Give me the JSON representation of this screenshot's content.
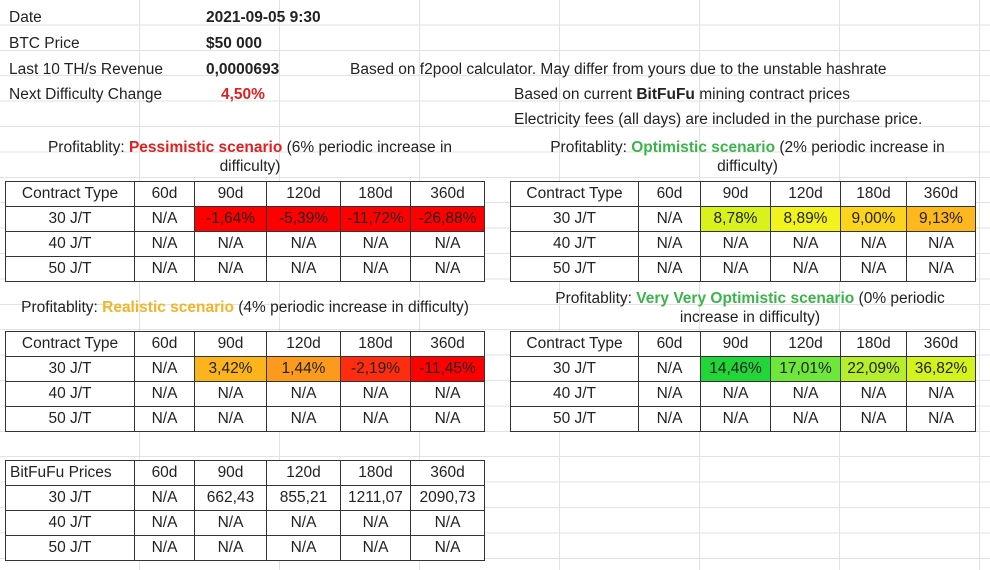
{
  "info": {
    "date_label": "Date",
    "date_value": "2021-09-05 9:30",
    "btc_label": "BTC Price",
    "btc_value": "$50 000",
    "revenue_label": "Last 10 TH/s Revenue",
    "revenue_value": "0,0000693",
    "revenue_note": "Based on f2pool calculator. May differ from yours due to the unstable hashrate",
    "difficulty_label": "Next Difficulty Change",
    "difficulty_value": "4,50%",
    "contract_note_prefix": "Based on current ",
    "contract_note_brand": "BitFuFu",
    "contract_note_suffix": " mining contract prices",
    "electricity_note": "Electricity fees (all days) are included in the purchase price."
  },
  "header_row": [
    "Contract Type",
    "60d",
    "90d",
    "120d",
    "180d",
    "360d"
  ],
  "prices_header_row": [
    "BitFuFu Prices",
    "60d",
    "90d",
    "120d",
    "180d",
    "360d"
  ],
  "scenarios": {
    "pessimistic": {
      "title_prefix": "Profitablity: ",
      "title_name": "Pessimistic scenario",
      "title_suffix": " (6% periodic increase in difficulty)",
      "rows": [
        {
          "type": "30 J/T",
          "cells": [
            "N/A",
            "-1,64%",
            "-5,39%",
            "-11,72%",
            "-26,88%"
          ],
          "colors": [
            "",
            "#ff0000",
            "#ff0000",
            "#ff0000",
            "#ff0000"
          ]
        },
        {
          "type": "40 J/T",
          "cells": [
            "N/A",
            "N/A",
            "N/A",
            "N/A",
            "N/A"
          ],
          "colors": [
            "",
            "",
            "",
            "",
            ""
          ]
        },
        {
          "type": "50 J/T",
          "cells": [
            "N/A",
            "N/A",
            "N/A",
            "N/A",
            "N/A"
          ],
          "colors": [
            "",
            "",
            "",
            "",
            ""
          ]
        }
      ]
    },
    "optimistic": {
      "title_prefix": "Profitablity: ",
      "title_name": "Optimistic scenario",
      "title_suffix": " (2% periodic increase in difficulty)",
      "rows": [
        {
          "type": "30 J/T",
          "cells": [
            "N/A",
            "8,78%",
            "8,89%",
            "9,00%",
            "9,13%"
          ],
          "colors": [
            "",
            "#d9f21c",
            "#f2f21c",
            "#fcd41c",
            "#fcb81c"
          ]
        },
        {
          "type": "40 J/T",
          "cells": [
            "N/A",
            "N/A",
            "N/A",
            "N/A",
            "N/A"
          ],
          "colors": [
            "",
            "",
            "",
            "",
            ""
          ]
        },
        {
          "type": "50 J/T",
          "cells": [
            "N/A",
            "N/A",
            "N/A",
            "N/A",
            "N/A"
          ],
          "colors": [
            "",
            "",
            "",
            "",
            ""
          ]
        }
      ]
    },
    "realistic": {
      "title_prefix": "Profitablity: ",
      "title_name": "Realistic scenario",
      "title_suffix": " (4% periodic increase in difficulty)",
      "rows": [
        {
          "type": "30 J/T",
          "cells": [
            "N/A",
            "3,42%",
            "1,44%",
            "-2,19%",
            "-11,45%"
          ],
          "colors": [
            "",
            "#fbb41c",
            "#fb9a1c",
            "#ff2d10",
            "#ff0000"
          ]
        },
        {
          "type": "40 J/T",
          "cells": [
            "N/A",
            "N/A",
            "N/A",
            "N/A",
            "N/A"
          ],
          "colors": [
            "",
            "",
            "",
            "",
            ""
          ]
        },
        {
          "type": "50 J/T",
          "cells": [
            "N/A",
            "N/A",
            "N/A",
            "N/A",
            "N/A"
          ],
          "colors": [
            "",
            "",
            "",
            "",
            ""
          ]
        }
      ]
    },
    "very_optimistic": {
      "title_prefix": "Profitablity: ",
      "title_name": "Very Very Optimistic scenario",
      "title_suffix": " (0% periodic increase in difficulty)",
      "rows": [
        {
          "type": "30 J/T",
          "cells": [
            "N/A",
            "14,46%",
            "17,01%",
            "22,09%",
            "36,82%"
          ],
          "colors": [
            "",
            "#22d63a",
            "#6ee63a",
            "#b5ee2a",
            "#d4f21c"
          ]
        },
        {
          "type": "40 J/T",
          "cells": [
            "N/A",
            "N/A",
            "N/A",
            "N/A",
            "N/A"
          ],
          "colors": [
            "",
            "",
            "",
            "",
            ""
          ]
        },
        {
          "type": "50 J/T",
          "cells": [
            "N/A",
            "N/A",
            "N/A",
            "N/A",
            "N/A"
          ],
          "colors": [
            "",
            "",
            "",
            "",
            ""
          ]
        }
      ]
    }
  },
  "prices": {
    "rows": [
      {
        "type": "30 J/T",
        "cells": [
          "N/A",
          "662,43",
          "855,21",
          "1211,07",
          "2090,73"
        ]
      },
      {
        "type": "40 J/T",
        "cells": [
          "N/A",
          "N/A",
          "N/A",
          "N/A",
          "N/A"
        ]
      },
      {
        "type": "50 J/T",
        "cells": [
          "N/A",
          "N/A",
          "N/A",
          "N/A",
          "N/A"
        ]
      }
    ]
  },
  "colors": {
    "red_highlight": "#e02020",
    "green_highlight": "#3bb54a",
    "yellow_highlight": "#f3b42a"
  }
}
